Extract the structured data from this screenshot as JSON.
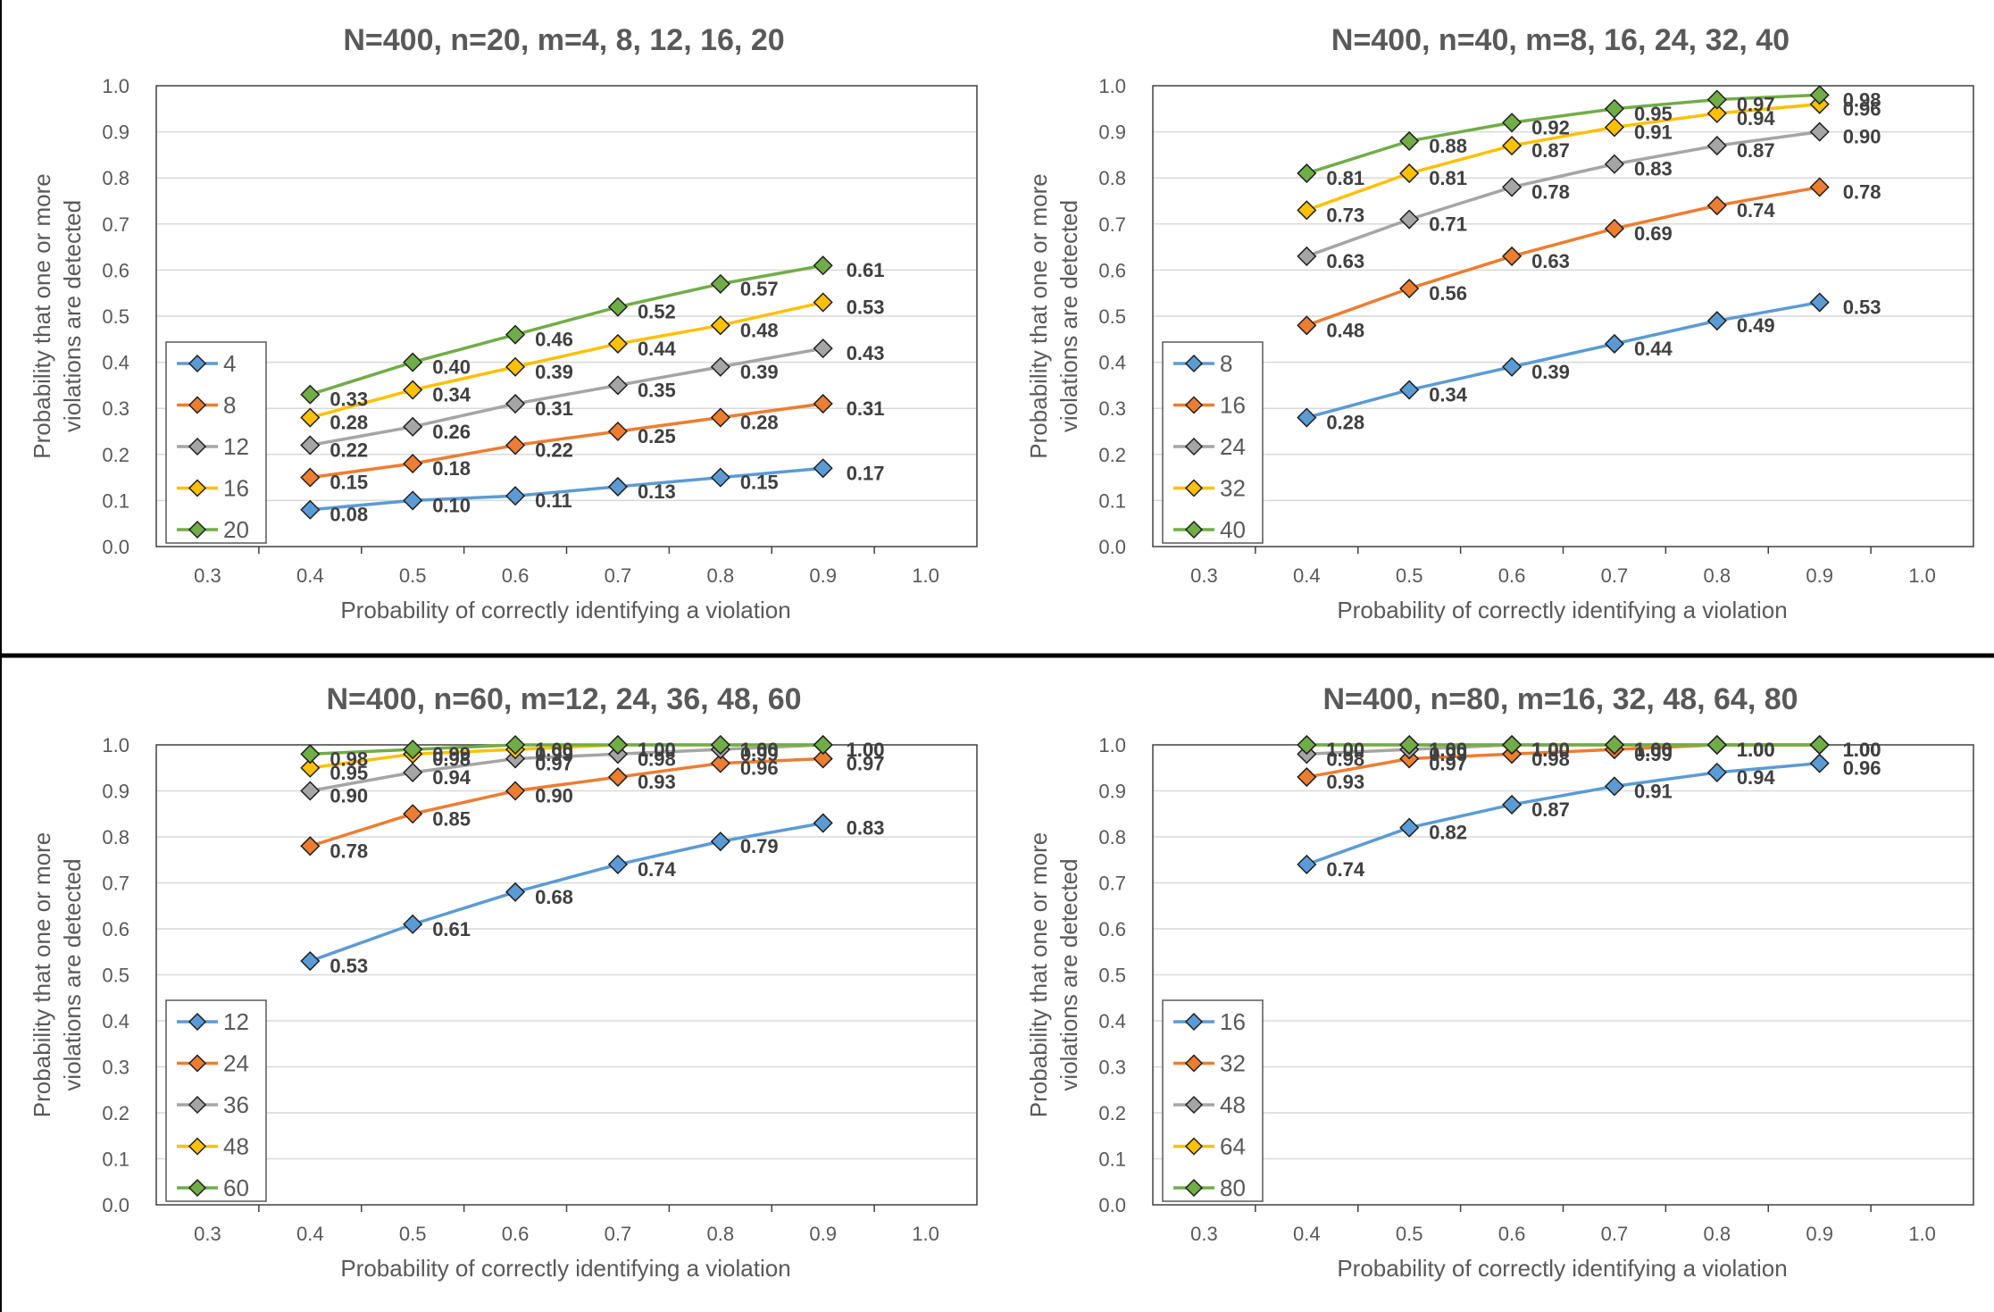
{
  "chart_data": [
    {
      "type": "line",
      "title": "N=400, n=20, m=4, 8, 12, 16, 20",
      "xlabel": "Probability of correctly identifying a violation",
      "ylabel": [
        "Probability that one or more",
        "violations are detected"
      ],
      "xlim": [
        0.25,
        1.05
      ],
      "ylim": [
        0,
        1.0
      ],
      "xticks": [
        "0.3",
        "0.4",
        "0.5",
        "0.6",
        "0.7",
        "0.8",
        "0.9",
        "1.0"
      ],
      "yticks": [
        "0.0",
        "0.1",
        "0.2",
        "0.3",
        "0.4",
        "0.5",
        "0.6",
        "0.7",
        "0.8",
        "0.9",
        "1.0"
      ],
      "grid": "horizontal",
      "legend_position": "bottom-left",
      "x": [
        0.4,
        0.5,
        0.6,
        0.7,
        0.8,
        0.9
      ],
      "series": [
        {
          "name": "4",
          "color": "#5B9BD5",
          "values": [
            0.08,
            0.1,
            0.11,
            0.13,
            0.15,
            0.17
          ]
        },
        {
          "name": "8",
          "color": "#ED7D31",
          "values": [
            0.15,
            0.18,
            0.22,
            0.25,
            0.28,
            0.31
          ]
        },
        {
          "name": "12",
          "color": "#A5A5A5",
          "values": [
            0.22,
            0.26,
            0.31,
            0.35,
            0.39,
            0.43
          ]
        },
        {
          "name": "16",
          "color": "#FFC000",
          "values": [
            0.28,
            0.34,
            0.39,
            0.44,
            0.48,
            0.53
          ]
        },
        {
          "name": "20",
          "color": "#70AD47",
          "values": [
            0.33,
            0.4,
            0.46,
            0.52,
            0.57,
            0.61
          ]
        }
      ]
    },
    {
      "type": "line",
      "title": "N=400, n=40, m=8, 16, 24, 32, 40",
      "xlabel": "Probability of correctly identifying a violation",
      "ylabel": [
        "Probability that one or more",
        "violations are detected"
      ],
      "xlim": [
        0.25,
        1.05
      ],
      "ylim": [
        0,
        1.0
      ],
      "xticks": [
        "0.3",
        "0.4",
        "0.5",
        "0.6",
        "0.7",
        "0.8",
        "0.9",
        "1.0"
      ],
      "yticks": [
        "0.0",
        "0.1",
        "0.2",
        "0.3",
        "0.4",
        "0.5",
        "0.6",
        "0.7",
        "0.8",
        "0.9",
        "1.0"
      ],
      "grid": "horizontal",
      "legend_position": "bottom-left",
      "x": [
        0.4,
        0.5,
        0.6,
        0.7,
        0.8,
        0.9
      ],
      "series": [
        {
          "name": "8",
          "color": "#5B9BD5",
          "values": [
            0.28,
            0.34,
            0.39,
            0.44,
            0.49,
            0.53
          ]
        },
        {
          "name": "16",
          "color": "#ED7D31",
          "values": [
            0.48,
            0.56,
            0.63,
            0.69,
            0.74,
            0.78
          ]
        },
        {
          "name": "24",
          "color": "#A5A5A5",
          "values": [
            0.63,
            0.71,
            0.78,
            0.83,
            0.87,
            0.9
          ]
        },
        {
          "name": "32",
          "color": "#FFC000",
          "values": [
            0.73,
            0.81,
            0.87,
            0.91,
            0.94,
            0.96
          ]
        },
        {
          "name": "40",
          "color": "#70AD47",
          "values": [
            0.81,
            0.88,
            0.92,
            0.95,
            0.97,
            0.98
          ]
        }
      ]
    },
    {
      "type": "line",
      "title": "N=400, n=60, m=12, 24, 36, 48, 60",
      "xlabel": "Probability of correctly identifying a violation",
      "ylabel": [
        "Probability that one or more",
        "violations are detected"
      ],
      "xlim": [
        0.25,
        1.05
      ],
      "ylim": [
        0,
        1.0
      ],
      "xticks": [
        "0.3",
        "0.4",
        "0.5",
        "0.6",
        "0.7",
        "0.8",
        "0.9",
        "1.0"
      ],
      "yticks": [
        "0.0",
        "0.1",
        "0.2",
        "0.3",
        "0.4",
        "0.5",
        "0.6",
        "0.7",
        "0.8",
        "0.9",
        "1.0"
      ],
      "grid": "horizontal",
      "legend_position": "bottom-left",
      "x": [
        0.4,
        0.5,
        0.6,
        0.7,
        0.8,
        0.9
      ],
      "series": [
        {
          "name": "12",
          "color": "#5B9BD5",
          "values": [
            0.53,
            0.61,
            0.68,
            0.74,
            0.79,
            0.83
          ]
        },
        {
          "name": "24",
          "color": "#ED7D31",
          "values": [
            0.78,
            0.85,
            0.9,
            0.93,
            0.96,
            0.97
          ]
        },
        {
          "name": "36",
          "color": "#A5A5A5",
          "values": [
            0.9,
            0.94,
            0.97,
            0.98,
            0.99,
            1.0
          ]
        },
        {
          "name": "48",
          "color": "#FFC000",
          "values": [
            0.95,
            0.98,
            0.99,
            1.0,
            1.0,
            1.0
          ]
        },
        {
          "name": "60",
          "color": "#70AD47",
          "values": [
            0.98,
            0.99,
            1.0,
            1.0,
            1.0,
            1.0
          ]
        }
      ]
    },
    {
      "type": "line",
      "title": "N=400, n=80, m=16, 32, 48, 64, 80",
      "xlabel": "Probability of correctly identifying a violation",
      "ylabel": [
        "Probability that one or more",
        "violations are detected"
      ],
      "xlim": [
        0.25,
        1.05
      ],
      "ylim": [
        0,
        1.0
      ],
      "xticks": [
        "0.3",
        "0.4",
        "0.5",
        "0.6",
        "0.7",
        "0.8",
        "0.9",
        "1.0"
      ],
      "yticks": [
        "0.0",
        "0.1",
        "0.2",
        "0.3",
        "0.4",
        "0.5",
        "0.6",
        "0.7",
        "0.8",
        "0.9",
        "1.0"
      ],
      "grid": "horizontal",
      "legend_position": "bottom-left",
      "x": [
        0.4,
        0.5,
        0.6,
        0.7,
        0.8,
        0.9
      ],
      "series": [
        {
          "name": "16",
          "color": "#5B9BD5",
          "values": [
            0.74,
            0.82,
            0.87,
            0.91,
            0.94,
            0.96
          ]
        },
        {
          "name": "32",
          "color": "#ED7D31",
          "values": [
            0.93,
            0.97,
            0.98,
            0.99,
            1.0,
            1.0
          ]
        },
        {
          "name": "48",
          "color": "#A5A5A5",
          "values": [
            0.98,
            0.99,
            1.0,
            1.0,
            1.0,
            1.0
          ]
        },
        {
          "name": "64",
          "color": "#FFC000",
          "values": [
            1.0,
            1.0,
            1.0,
            1.0,
            1.0,
            1.0
          ]
        },
        {
          "name": "80",
          "color": "#70AD47",
          "values": [
            1.0,
            1.0,
            1.0,
            1.0,
            1.0,
            1.0
          ]
        }
      ]
    }
  ]
}
